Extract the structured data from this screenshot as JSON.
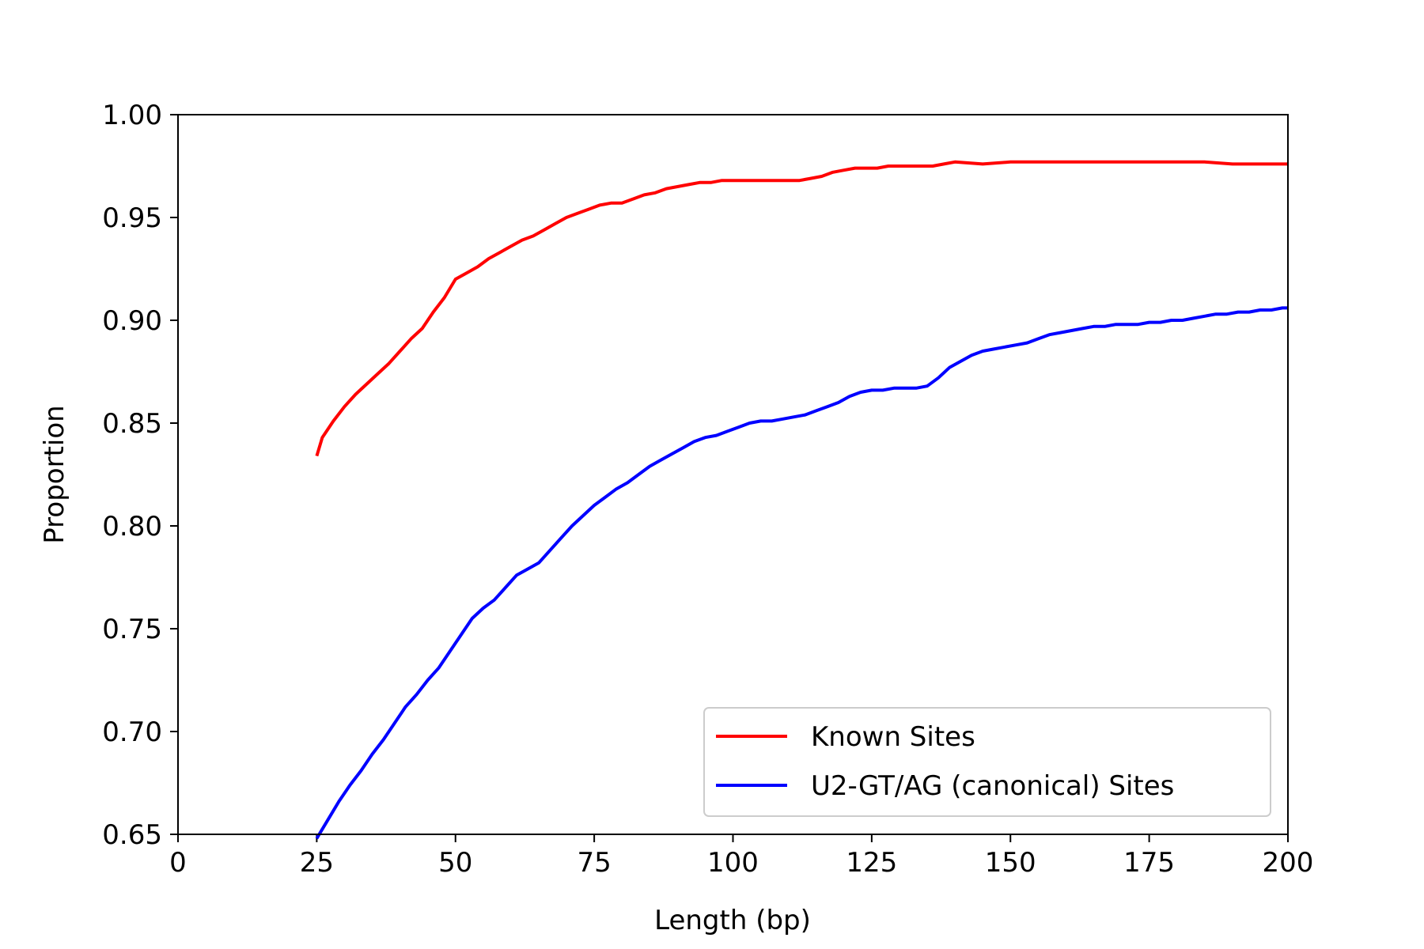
{
  "chart_data": {
    "type": "line",
    "title": "",
    "xlabel": "Length (bp)",
    "ylabel": "Proportion",
    "xlim": [
      0,
      200
    ],
    "ylim": [
      0.65,
      1.0
    ],
    "xticks": [
      0,
      25,
      50,
      75,
      100,
      125,
      150,
      175,
      200
    ],
    "xtick_labels": [
      "0",
      "25",
      "50",
      "75",
      "100",
      "125",
      "150",
      "175",
      "200"
    ],
    "yticks": [
      0.65,
      0.7,
      0.75,
      0.8,
      0.85,
      0.9,
      0.95,
      1.0
    ],
    "ytick_labels": [
      "0.65",
      "0.70",
      "0.75",
      "0.80",
      "0.85",
      "0.90",
      "0.95",
      "1.00"
    ],
    "grid": false,
    "legend_position": "bottom-right",
    "series": [
      {
        "name": "Known Sites",
        "color": "#ff0000",
        "x": [
          25,
          26,
          28,
          30,
          32,
          34,
          36,
          38,
          40,
          42,
          44,
          46,
          48,
          50,
          52,
          54,
          56,
          58,
          60,
          62,
          64,
          66,
          68,
          70,
          72,
          74,
          76,
          78,
          80,
          82,
          84,
          86,
          88,
          90,
          92,
          94,
          96,
          98,
          100,
          102,
          104,
          106,
          108,
          110,
          112,
          114,
          116,
          118,
          120,
          122,
          124,
          126,
          128,
          130,
          132,
          134,
          136,
          138,
          140,
          145,
          150,
          155,
          160,
          165,
          170,
          175,
          180,
          185,
          190,
          195,
          200
        ],
        "y": [
          0.834,
          0.843,
          0.851,
          0.858,
          0.864,
          0.869,
          0.874,
          0.879,
          0.885,
          0.891,
          0.896,
          0.904,
          0.911,
          0.92,
          0.923,
          0.926,
          0.93,
          0.933,
          0.936,
          0.939,
          0.941,
          0.944,
          0.947,
          0.95,
          0.952,
          0.954,
          0.956,
          0.957,
          0.957,
          0.959,
          0.961,
          0.962,
          0.964,
          0.965,
          0.966,
          0.967,
          0.967,
          0.968,
          0.968,
          0.968,
          0.968,
          0.968,
          0.968,
          0.968,
          0.968,
          0.969,
          0.97,
          0.972,
          0.973,
          0.974,
          0.974,
          0.974,
          0.975,
          0.975,
          0.975,
          0.975,
          0.975,
          0.976,
          0.977,
          0.976,
          0.977,
          0.977,
          0.977,
          0.977,
          0.977,
          0.977,
          0.977,
          0.977,
          0.976,
          0.976,
          0.976
        ]
      },
      {
        "name": "U2-GT/AG (canonical) Sites",
        "color": "#0000ff",
        "x": [
          25,
          27,
          29,
          31,
          33,
          35,
          37,
          39,
          41,
          43,
          45,
          47,
          49,
          51,
          53,
          55,
          57,
          59,
          61,
          63,
          65,
          67,
          69,
          71,
          73,
          75,
          77,
          79,
          81,
          83,
          85,
          87,
          89,
          91,
          93,
          95,
          97,
          99,
          101,
          103,
          105,
          107,
          109,
          111,
          113,
          115,
          117,
          119,
          121,
          123,
          125,
          127,
          129,
          131,
          133,
          135,
          137,
          139,
          141,
          143,
          145,
          147,
          149,
          151,
          153,
          155,
          157,
          159,
          161,
          163,
          165,
          167,
          169,
          171,
          173,
          175,
          177,
          179,
          181,
          183,
          185,
          187,
          189,
          191,
          193,
          195,
          197,
          199,
          200
        ],
        "y": [
          0.648,
          0.657,
          0.666,
          0.674,
          0.681,
          0.689,
          0.696,
          0.704,
          0.712,
          0.718,
          0.725,
          0.731,
          0.739,
          0.747,
          0.755,
          0.76,
          0.764,
          0.77,
          0.776,
          0.779,
          0.782,
          0.788,
          0.794,
          0.8,
          0.805,
          0.81,
          0.814,
          0.818,
          0.821,
          0.825,
          0.829,
          0.832,
          0.835,
          0.838,
          0.841,
          0.843,
          0.844,
          0.846,
          0.848,
          0.85,
          0.851,
          0.851,
          0.852,
          0.853,
          0.854,
          0.856,
          0.858,
          0.86,
          0.863,
          0.865,
          0.866,
          0.866,
          0.867,
          0.867,
          0.867,
          0.868,
          0.872,
          0.877,
          0.88,
          0.883,
          0.885,
          0.886,
          0.887,
          0.888,
          0.889,
          0.891,
          0.893,
          0.894,
          0.895,
          0.896,
          0.897,
          0.897,
          0.898,
          0.898,
          0.898,
          0.899,
          0.899,
          0.9,
          0.9,
          0.901,
          0.902,
          0.903,
          0.903,
          0.904,
          0.904,
          0.905,
          0.905,
          0.906,
          0.906
        ]
      }
    ]
  }
}
